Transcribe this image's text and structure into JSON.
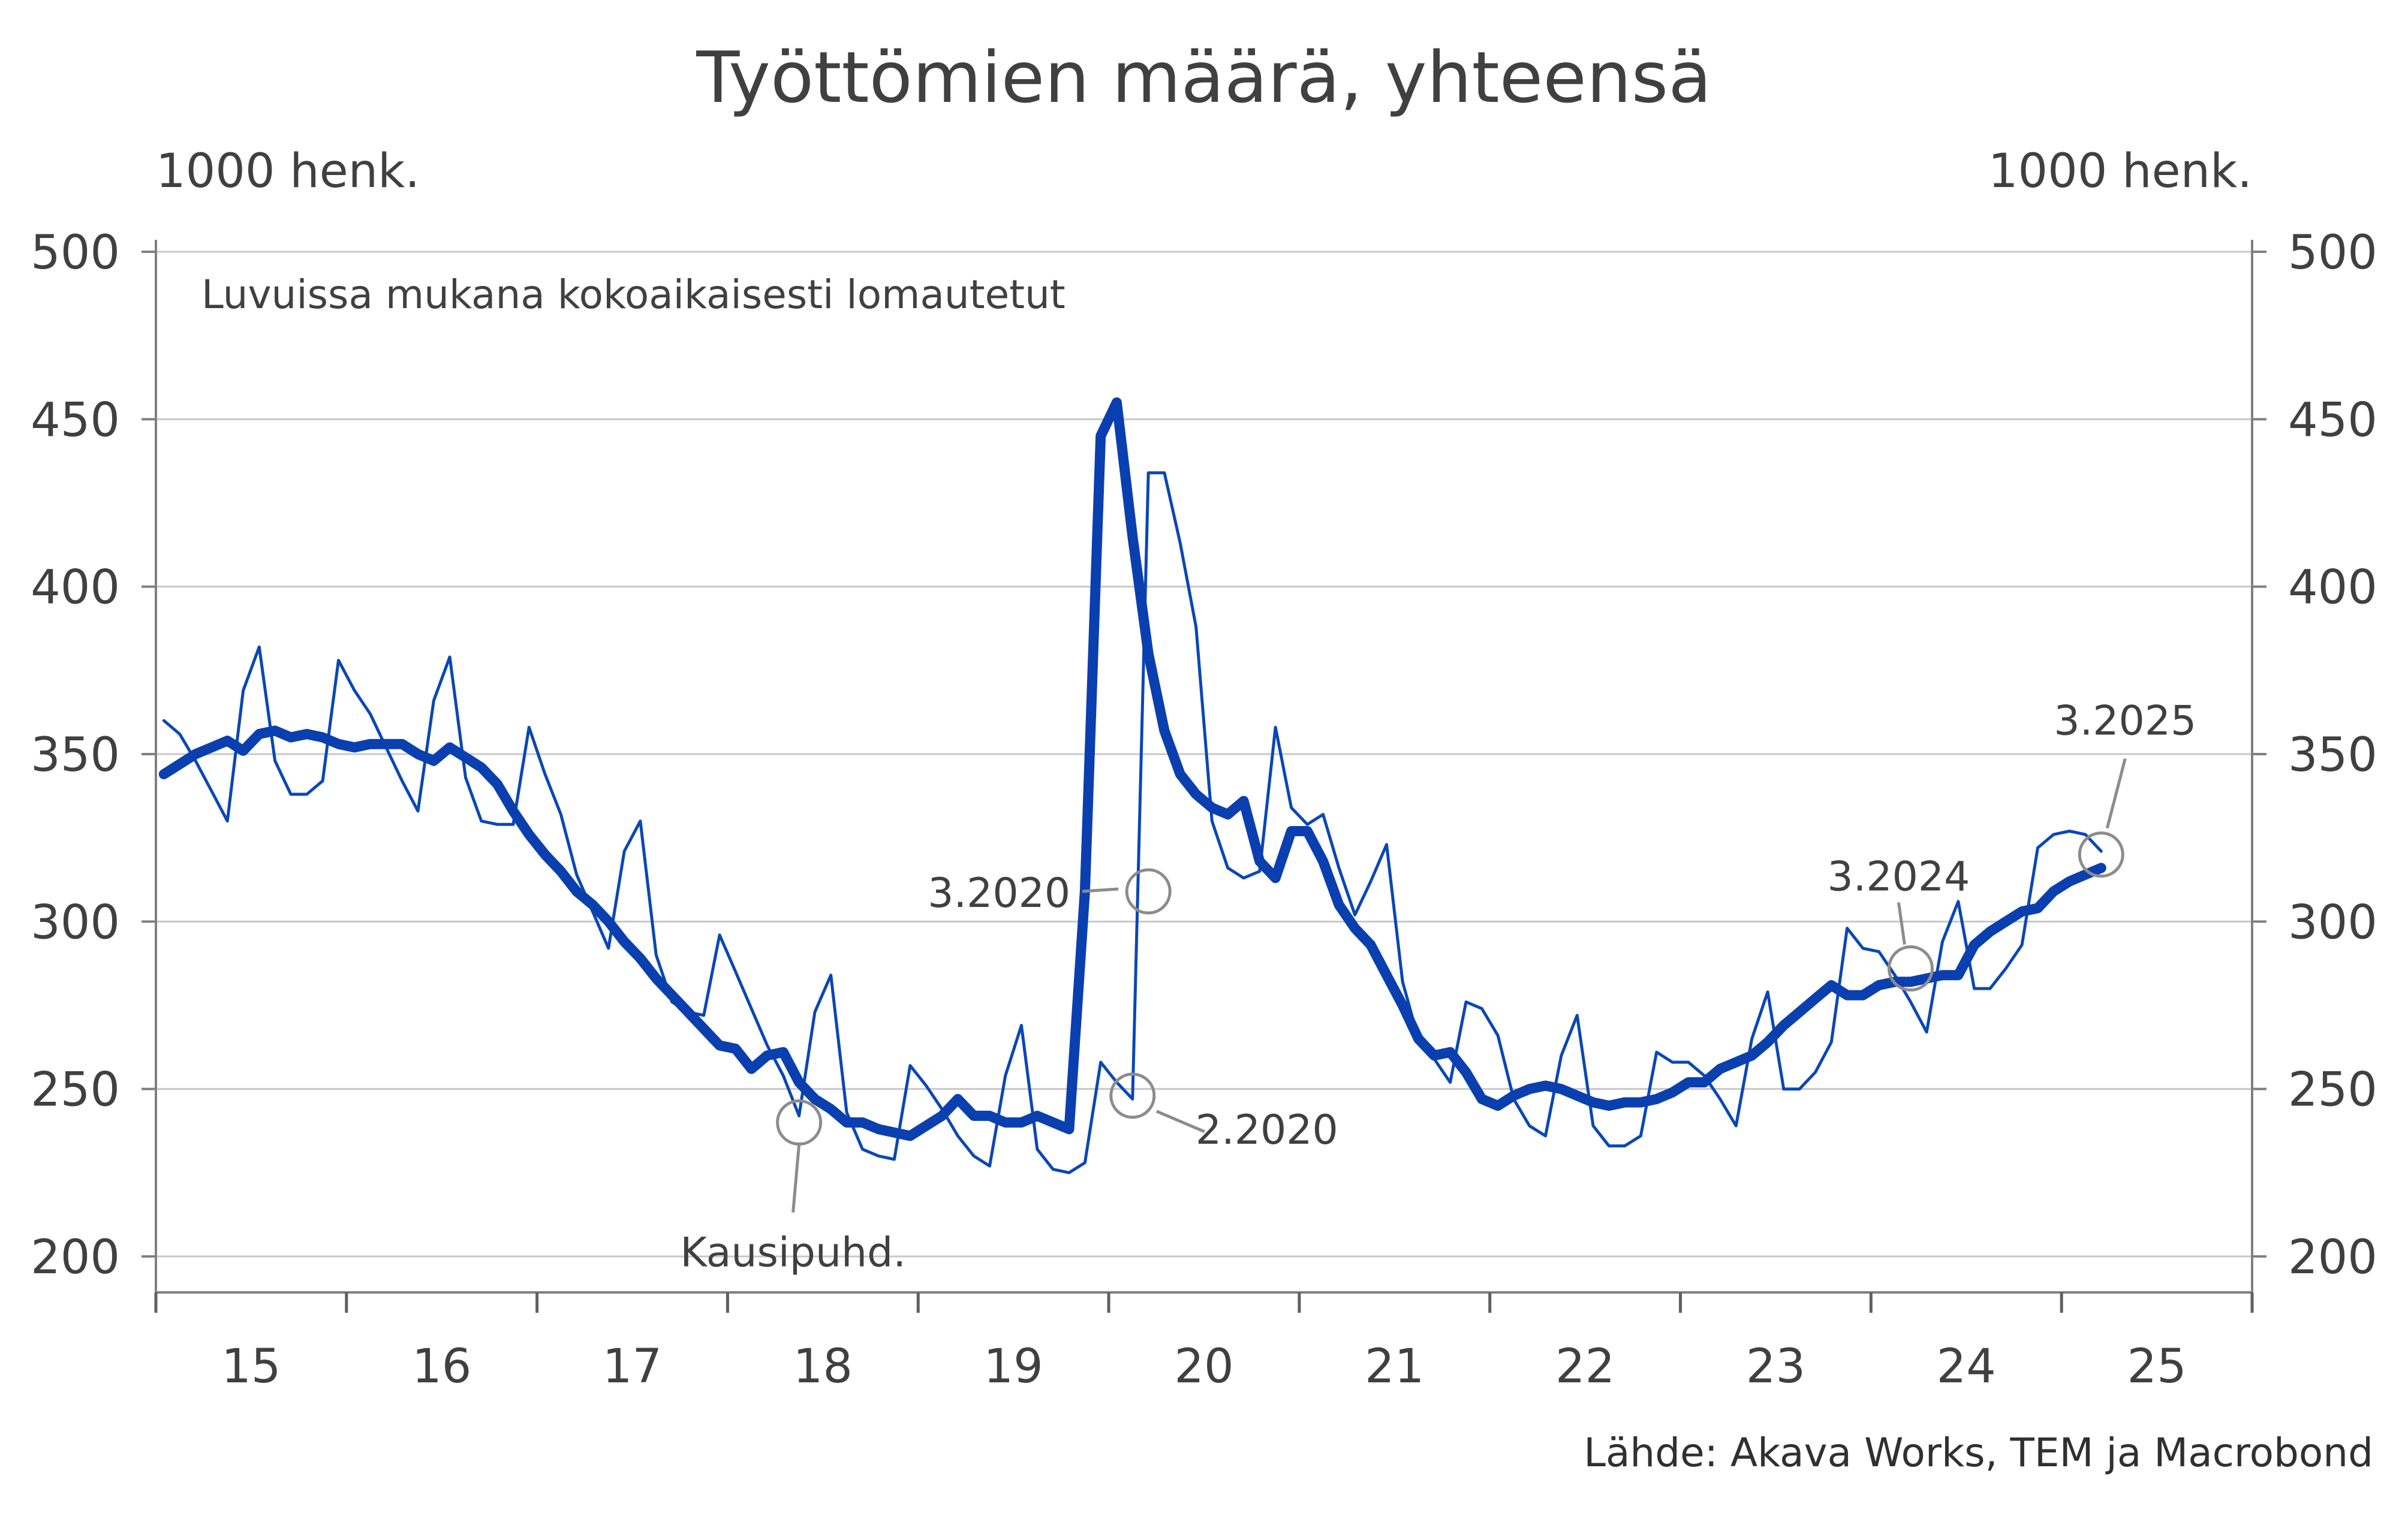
{
  "chart_data": {
    "type": "line",
    "title": "Työttömien määrä, yhteensä",
    "ylabel_left": "1000 henk.",
    "ylabel_right": "1000 henk.",
    "note": "Luvuissa mukana kokoaikaisesti lomautetut",
    "source": "Lähde: Akava Works, TEM ja Macrobond",
    "ylim": [
      200,
      500
    ],
    "yticks": [
      200,
      250,
      300,
      350,
      400,
      450,
      500
    ],
    "xlim": [
      2015.0,
      2026.0
    ],
    "xticks": [
      2015,
      2016,
      2017,
      2018,
      2019,
      2020,
      2021,
      2022,
      2023,
      2024,
      2025,
      2026
    ],
    "xtick_labels": [
      "15",
      "16",
      "17",
      "18",
      "19",
      "20",
      "21",
      "22",
      "23",
      "24",
      "25"
    ],
    "grid": true,
    "colors": {
      "raw": "#0a47b6",
      "trend": "#0a3fb0",
      "grid": "#c8c8c8",
      "marker": "#8c8c8c"
    },
    "series": [
      {
        "name": "",
        "style": "thin",
        "x": [
          2015.042,
          2015.125,
          2015.208,
          2015.292,
          2015.375,
          2015.458,
          2015.542,
          2015.625,
          2015.708,
          2015.792,
          2015.875,
          2015.958,
          2016.042,
          2016.125,
          2016.208,
          2016.292,
          2016.375,
          2016.458,
          2016.542,
          2016.625,
          2016.708,
          2016.792,
          2016.875,
          2016.958,
          2017.042,
          2017.125,
          2017.208,
          2017.292,
          2017.375,
          2017.458,
          2017.542,
          2017.625,
          2017.708,
          2017.792,
          2017.875,
          2017.958,
          2018.042,
          2018.125,
          2018.208,
          2018.292,
          2018.375,
          2018.458,
          2018.542,
          2018.625,
          2018.708,
          2018.792,
          2018.875,
          2018.958,
          2019.042,
          2019.125,
          2019.208,
          2019.292,
          2019.375,
          2019.458,
          2019.542,
          2019.625,
          2019.708,
          2019.792,
          2019.875,
          2019.958,
          2020.042,
          2020.125,
          2020.208,
          2020.292,
          2020.375,
          2020.458,
          2020.542,
          2020.625,
          2020.708,
          2020.792,
          2020.875,
          2020.958,
          2021.042,
          2021.125,
          2021.208,
          2021.292,
          2021.375,
          2021.458,
          2021.542,
          2021.625,
          2021.708,
          2021.792,
          2021.875,
          2021.958,
          2022.042,
          2022.125,
          2022.208,
          2022.292,
          2022.375,
          2022.458,
          2022.542,
          2022.625,
          2022.708,
          2022.792,
          2022.875,
          2022.958,
          2023.042,
          2023.125,
          2023.208,
          2023.292,
          2023.375,
          2023.458,
          2023.542,
          2023.625,
          2023.708,
          2023.792,
          2023.875,
          2023.958,
          2024.042,
          2024.125,
          2024.208,
          2024.292,
          2024.375,
          2024.458,
          2024.542,
          2024.625,
          2024.708,
          2024.792,
          2024.875,
          2024.958,
          2025.042,
          2025.125,
          2025.208
        ],
        "y": [
          360,
          356,
          348,
          339,
          330,
          369,
          382,
          348,
          338,
          338,
          342,
          378,
          369,
          362,
          352,
          342,
          333,
          366,
          379,
          343,
          330,
          329,
          329,
          358,
          344,
          332,
          314,
          303,
          292,
          321,
          330,
          290,
          276,
          273,
          272,
          296,
          285,
          274,
          263,
          254,
          242,
          273,
          284,
          243,
          232,
          230,
          229,
          257,
          251,
          244,
          236,
          230,
          227,
          254,
          269,
          232,
          226,
          225,
          228,
          258,
          252,
          247,
          434,
          434,
          413,
          388,
          330,
          316,
          313,
          315,
          358,
          334,
          329,
          332,
          316,
          302,
          312,
          323,
          282,
          265,
          259,
          252,
          276,
          274,
          266,
          247,
          239,
          236,
          260,
          272,
          239,
          233,
          233,
          236,
          261,
          258,
          258,
          254,
          247,
          239,
          265,
          279,
          250,
          250,
          255,
          264,
          298,
          292,
          291,
          284,
          276,
          267,
          294,
          306,
          280,
          280,
          286,
          293,
          322,
          326,
          327,
          326,
          321
        ]
      },
      {
        "name": "Kausipuhd.",
        "style": "thick",
        "x": [
          2015.042,
          2015.125,
          2015.208,
          2015.292,
          2015.375,
          2015.458,
          2015.542,
          2015.625,
          2015.708,
          2015.792,
          2015.875,
          2015.958,
          2016.042,
          2016.125,
          2016.208,
          2016.292,
          2016.375,
          2016.458,
          2016.542,
          2016.625,
          2016.708,
          2016.792,
          2016.875,
          2016.958,
          2017.042,
          2017.125,
          2017.208,
          2017.292,
          2017.375,
          2017.458,
          2017.542,
          2017.625,
          2017.708,
          2017.792,
          2017.875,
          2017.958,
          2018.042,
          2018.125,
          2018.208,
          2018.292,
          2018.375,
          2018.458,
          2018.542,
          2018.625,
          2018.708,
          2018.792,
          2018.875,
          2018.958,
          2019.042,
          2019.125,
          2019.208,
          2019.292,
          2019.375,
          2019.458,
          2019.542,
          2019.625,
          2019.708,
          2019.792,
          2019.875,
          2019.958,
          2020.042,
          2020.125,
          2020.208,
          2020.292,
          2020.375,
          2020.458,
          2020.542,
          2020.625,
          2020.708,
          2020.792,
          2020.875,
          2020.958,
          2021.042,
          2021.125,
          2021.208,
          2021.292,
          2021.375,
          2021.458,
          2021.542,
          2021.625,
          2021.708,
          2021.792,
          2021.875,
          2021.958,
          2022.042,
          2022.125,
          2022.208,
          2022.292,
          2022.375,
          2022.458,
          2022.542,
          2022.625,
          2022.708,
          2022.792,
          2022.875,
          2022.958,
          2023.042,
          2023.125,
          2023.208,
          2023.292,
          2023.375,
          2023.458,
          2023.542,
          2023.625,
          2023.708,
          2023.792,
          2023.875,
          2023.958,
          2024.042,
          2024.125,
          2024.208,
          2024.292,
          2024.375,
          2024.458,
          2024.542,
          2024.625,
          2024.708,
          2024.792,
          2024.875,
          2024.958,
          2025.042,
          2025.125,
          2025.208
        ],
        "y": [
          344,
          347,
          350,
          352,
          354,
          351,
          356,
          357,
          355,
          356,
          355,
          353,
          352,
          353,
          353,
          353,
          350,
          348,
          352,
          349,
          346,
          341,
          333,
          326,
          320,
          315,
          309,
          305,
          300,
          294,
          289,
          283,
          278,
          273,
          268,
          263,
          262,
          256,
          260,
          261,
          252,
          247,
          244,
          240,
          240,
          238,
          237,
          236,
          239,
          242,
          247,
          242,
          242,
          240,
          240,
          242,
          240,
          238,
          309,
          445,
          455,
          415,
          380,
          357,
          344,
          338,
          334,
          332,
          336,
          318,
          313,
          327,
          327,
          318,
          305,
          298,
          293,
          284,
          275,
          265,
          260,
          261,
          255,
          247,
          245,
          248,
          250,
          251,
          250,
          248,
          246,
          245,
          246,
          246,
          247,
          249,
          252,
          252,
          256,
          258,
          260,
          264,
          269,
          273,
          277,
          281,
          278,
          278,
          281,
          282,
          282,
          283,
          284,
          284,
          293,
          297,
          300,
          303,
          304,
          309,
          312,
          314,
          316
        ]
      }
    ],
    "annotations": [
      {
        "label": "Kausipuhd.",
        "x": 2018.375,
        "y": 240
      },
      {
        "label": "2.2020",
        "x": 2020.125,
        "y": 248
      },
      {
        "label": "3.2020",
        "x": 2020.208,
        "y": 309
      },
      {
        "label": "3.2024",
        "x": 2024.208,
        "y": 286
      },
      {
        "label": "3.2025",
        "x": 2025.208,
        "y": 320
      }
    ]
  }
}
